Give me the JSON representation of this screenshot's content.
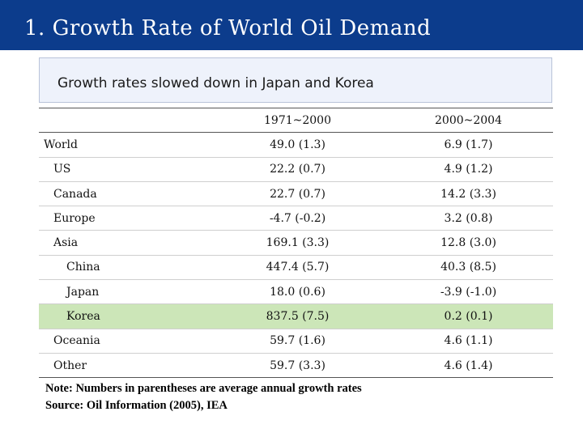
{
  "slide": {
    "title": "1. Growth Rate of World Oil Demand",
    "subtitle": "Growth rates slowed down in Japan and Korea",
    "colors": {
      "title_bar": "#0c3c8c",
      "highlight_row": "#cce6b8",
      "subtitle_box": "#eef2fb"
    }
  },
  "table": {
    "headers": [
      "",
      "1971~2000",
      "2000~2004"
    ],
    "rows": [
      {
        "label": "World",
        "level": 0,
        "v1": "49.0 (1.3)",
        "v2": "6.9 (1.7)",
        "highlight": false
      },
      {
        "label": "US",
        "level": 1,
        "v1": "22.2 (0.7)",
        "v2": "4.9 (1.2)",
        "highlight": false
      },
      {
        "label": "Canada",
        "level": 1,
        "v1": "22.7 (0.7)",
        "v2": "14.2 (3.3)",
        "highlight": false
      },
      {
        "label": "Europe",
        "level": 1,
        "v1": "-4.7 (-0.2)",
        "v2": "3.2 (0.8)",
        "highlight": false
      },
      {
        "label": "Asia",
        "level": 1,
        "v1": "169.1 (3.3)",
        "v2": "12.8 (3.0)",
        "highlight": false
      },
      {
        "label": "China",
        "level": 2,
        "v1": "447.4 (5.7)",
        "v2": "40.3 (8.5)",
        "highlight": false
      },
      {
        "label": "Japan",
        "level": 2,
        "v1": "18.0 (0.6)",
        "v2": "-3.9 (-1.0)",
        "highlight": false
      },
      {
        "label": "Korea",
        "level": 2,
        "v1": "837.5 (7.5)",
        "v2": "0.2 (0.1)",
        "highlight": true
      },
      {
        "label": "Oceania",
        "level": 1,
        "v1": "59.7 (1.6)",
        "v2": "4.6 (1.1)",
        "highlight": false
      },
      {
        "label": "Other",
        "level": 1,
        "v1": "59.7 (3.3)",
        "v2": "4.6 (1.4)",
        "highlight": false
      }
    ]
  },
  "notes": {
    "line1": "Note: Numbers in parentheses are average annual growth rates",
    "line2": "Source: Oil Information (2005), IEA"
  }
}
